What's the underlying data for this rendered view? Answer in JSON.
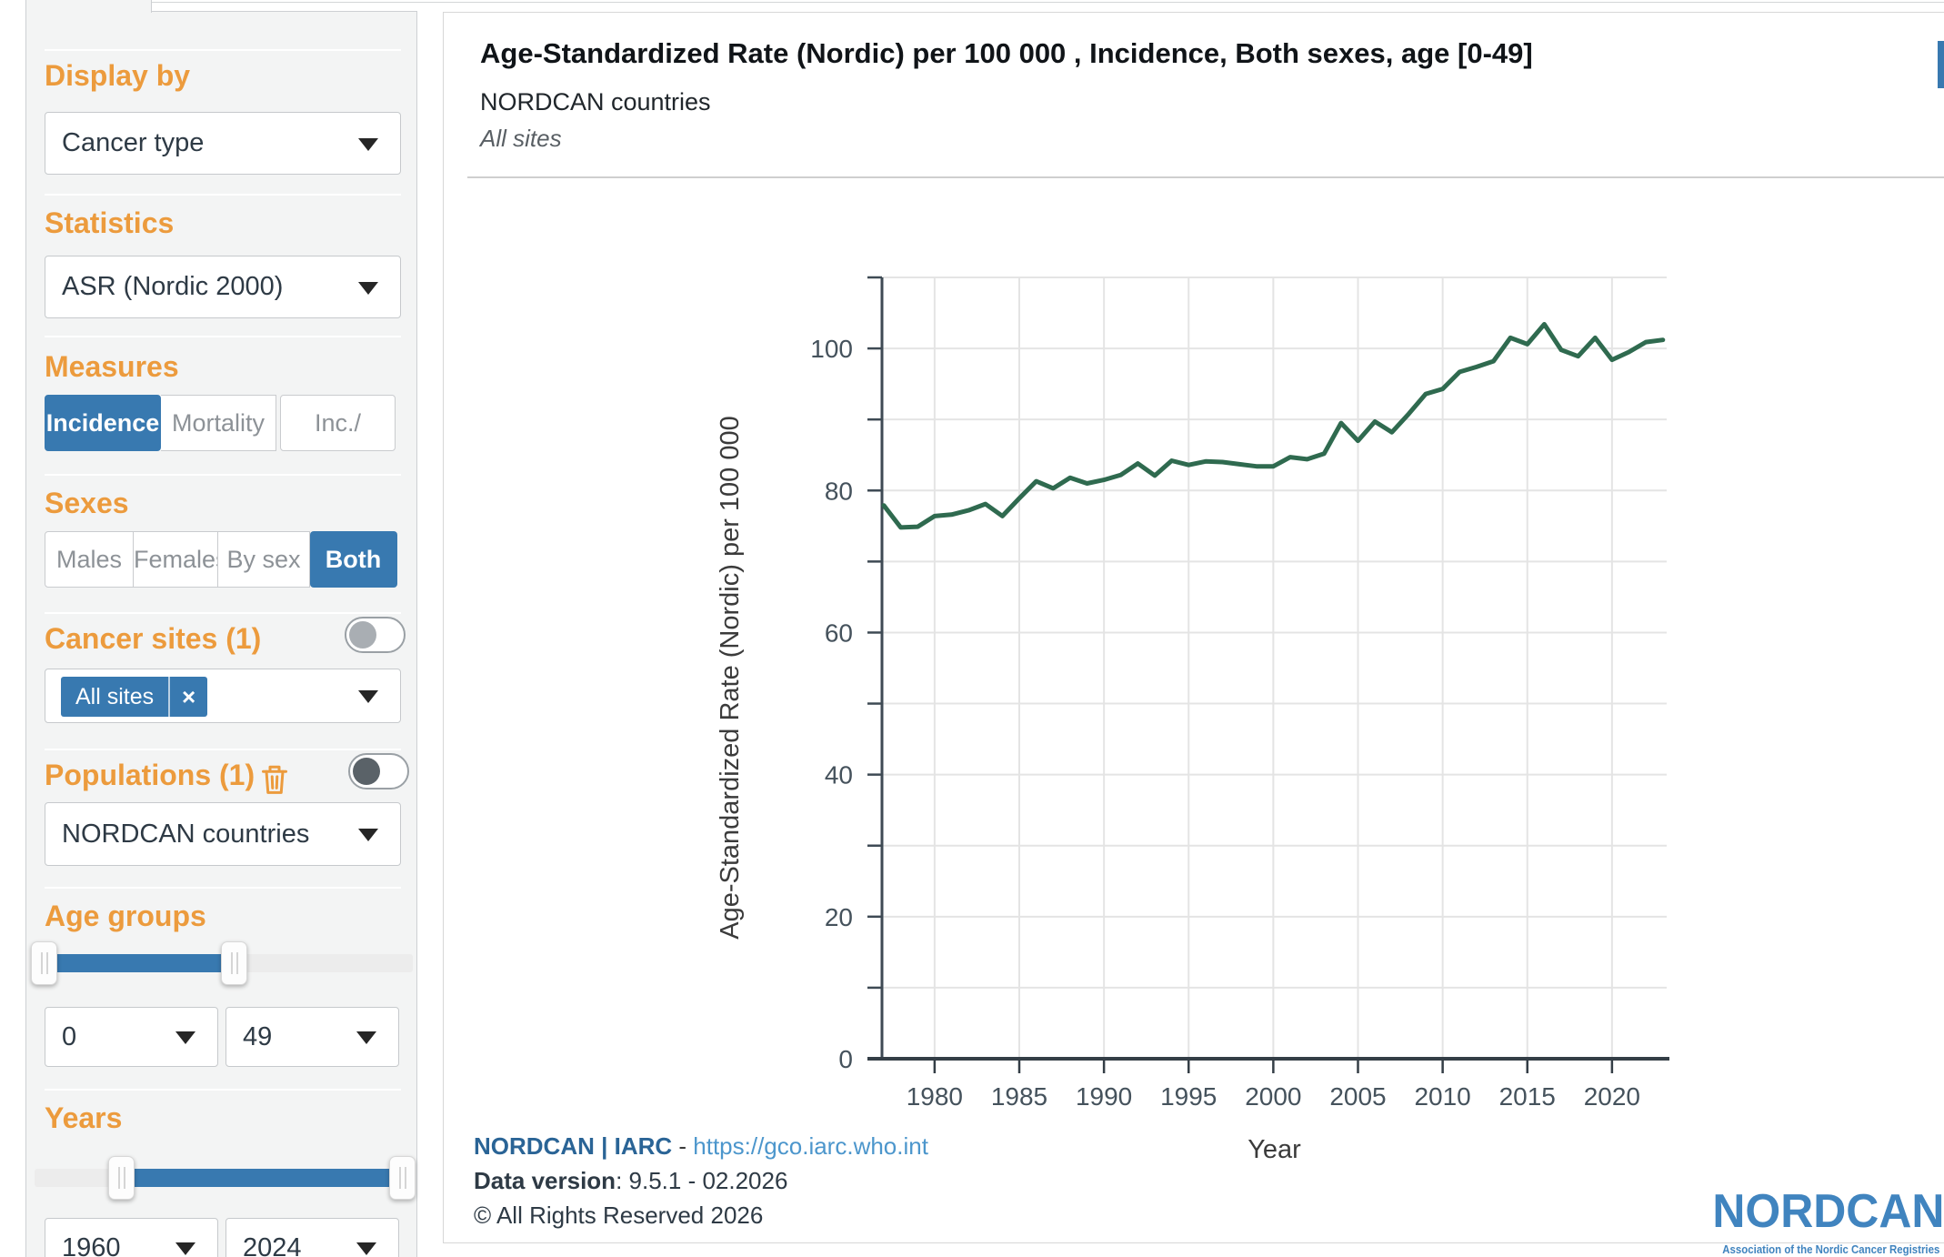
{
  "colors": {
    "accent_orange": "#ec9b3d",
    "accent_blue": "#3879b0",
    "line_green": "#2f6a4f",
    "logo_blue": "#4084bf"
  },
  "sidebar": {
    "display_by": {
      "label": "Display by",
      "value": "Cancer type"
    },
    "statistics": {
      "label": "Statistics",
      "value": "ASR (Nordic 2000)"
    },
    "measures": {
      "label": "Measures",
      "options": [
        "Incidence",
        "Mortality",
        "Inc./"
      ],
      "selected": "Incidence"
    },
    "sexes": {
      "label": "Sexes",
      "options": [
        "Males",
        "Females",
        "By sex",
        "Both"
      ],
      "selected": "Both"
    },
    "cancer_sites": {
      "label": "Cancer sites (1)",
      "chip": "All sites",
      "chip_close": "×",
      "toggle_on": false
    },
    "populations": {
      "label": "Populations (1)",
      "value": "NORDCAN countries",
      "toggle_on": false
    },
    "age_groups": {
      "label": "Age groups",
      "from": "0",
      "to": "49"
    },
    "years": {
      "label": "Years",
      "from": "1960",
      "to": "2024"
    }
  },
  "header": {
    "title": "Age-Standardized Rate (Nordic) per 100 000 , Incidence, Both sexes, age [0-49]",
    "subtitle": "NORDCAN countries",
    "filter": "All sites"
  },
  "footer": {
    "brand": "NORDCAN | IARC",
    "dash": " - ",
    "url": "https://gco.iarc.who.int",
    "data_version_label": "Data version",
    "data_version_value": ": 9.5.1 - 02.2026",
    "copyright": "© All Rights Reserved 2026"
  },
  "logo": {
    "name": "NORDCAN",
    "tagline": "Association of the Nordic Cancer Registries"
  },
  "chart_data": {
    "type": "line",
    "title": "Age-Standardized Rate (Nordic) per 100 000 , Incidence, Both sexes, age [0-49]",
    "subtitle": "NORDCAN countries",
    "series_name": "All sites",
    "xlabel": "Year",
    "ylabel": "Age-Standardized Rate (Nordic) per 100 000",
    "xlim": [
      1977,
      2023.3
    ],
    "ylim": [
      0,
      110
    ],
    "xticks": [
      1980,
      1985,
      1990,
      1995,
      2000,
      2005,
      2010,
      2015,
      2020
    ],
    "yticks_labeled": [
      0,
      20,
      40,
      60,
      80,
      100
    ],
    "grid": true,
    "legend": false,
    "line_color": "#2f6a4f",
    "x": [
      1977,
      1978,
      1979,
      1980,
      1981,
      1982,
      1983,
      1984,
      1985,
      1986,
      1987,
      1988,
      1989,
      1990,
      1991,
      1992,
      1993,
      1994,
      1995,
      1996,
      1997,
      1998,
      1999,
      2000,
      2001,
      2002,
      2003,
      2004,
      2005,
      2006,
      2007,
      2008,
      2009,
      2010,
      2011,
      2012,
      2013,
      2014,
      2015,
      2016,
      2017,
      2018,
      2019,
      2020,
      2021,
      2022,
      2023
    ],
    "values": [
      77.9,
      74.8,
      74.9,
      76.4,
      76.6,
      77.2,
      78.1,
      76.4,
      78.9,
      81.3,
      80.3,
      81.8,
      81.0,
      81.5,
      82.2,
      83.8,
      82.1,
      84.2,
      83.6,
      84.1,
      84.0,
      83.7,
      83.4,
      83.4,
      84.7,
      84.4,
      85.2,
      89.5,
      87.0,
      89.7,
      88.2,
      90.8,
      93.6,
      94.3,
      96.7,
      97.4,
      98.2,
      101.5,
      100.6,
      103.4,
      99.8,
      98.9,
      101.5,
      98.4,
      99.5,
      100.9,
      101.2
    ]
  }
}
